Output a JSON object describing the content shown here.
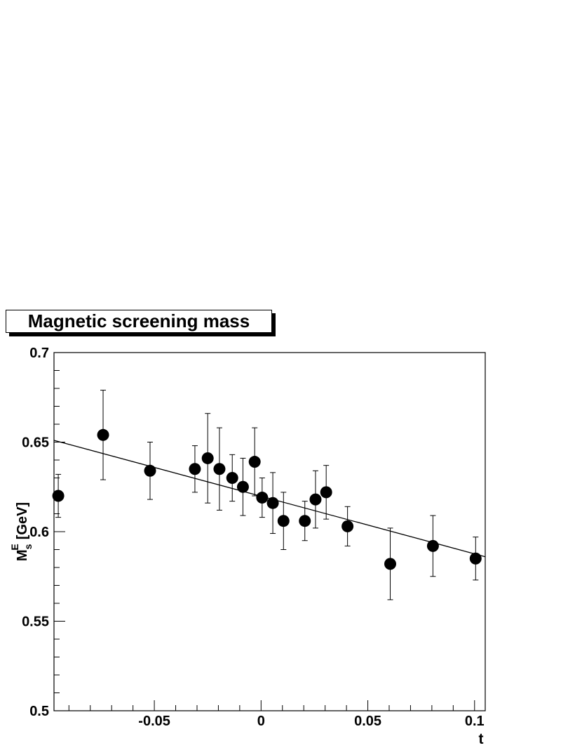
{
  "chart_data": {
    "type": "scatter",
    "title": "Magnetic screening mass",
    "xlabel": "t",
    "ylabel_main": "M",
    "ylabel_sup": "E",
    "ylabel_sub": "s",
    "ylabel_unit": "[GeV]",
    "xlim": [
      -0.097,
      0.105
    ],
    "ylim": [
      0.5,
      0.7
    ],
    "xticks": [
      -0.05,
      0,
      0.05,
      0.1
    ],
    "xtick_labels": [
      "-0.05",
      "0",
      "0.05",
      "0.1"
    ],
    "yticks": [
      0.5,
      0.55,
      0.6,
      0.65,
      0.7
    ],
    "ytick_labels": [
      "0.5",
      "0.55",
      "0.6",
      "0.65",
      "0.7"
    ],
    "grid": false,
    "series": [
      {
        "points": [
          {
            "x": -0.095,
            "y": 0.62,
            "err": 0.012
          },
          {
            "x": -0.074,
            "y": 0.654,
            "err": 0.025
          },
          {
            "x": -0.052,
            "y": 0.634,
            "err": 0.016
          },
          {
            "x": -0.031,
            "y": 0.635,
            "err": 0.013
          },
          {
            "x": -0.025,
            "y": 0.641,
            "err": 0.025
          },
          {
            "x": -0.0195,
            "y": 0.635,
            "err": 0.023
          },
          {
            "x": -0.0135,
            "y": 0.63,
            "err": 0.013
          },
          {
            "x": -0.0085,
            "y": 0.625,
            "err": 0.016
          },
          {
            "x": -0.003,
            "y": 0.639,
            "err": 0.019
          },
          {
            "x": 0.0005,
            "y": 0.619,
            "err": 0.011
          },
          {
            "x": 0.0055,
            "y": 0.616,
            "err": 0.017
          },
          {
            "x": 0.0105,
            "y": 0.606,
            "err": 0.016
          },
          {
            "x": 0.0205,
            "y": 0.606,
            "err": 0.011
          },
          {
            "x": 0.0255,
            "y": 0.618,
            "err": 0.016
          },
          {
            "x": 0.0305,
            "y": 0.622,
            "err": 0.015
          },
          {
            "x": 0.0405,
            "y": 0.603,
            "err": 0.011
          },
          {
            "x": 0.0605,
            "y": 0.582,
            "err": 0.02
          },
          {
            "x": 0.0805,
            "y": 0.592,
            "err": 0.017
          },
          {
            "x": 0.1005,
            "y": 0.585,
            "err": 0.012
          }
        ]
      }
    ],
    "fit_line": {
      "x": [
        -0.097,
        0.105
      ],
      "y": [
        0.651,
        0.586
      ]
    }
  }
}
